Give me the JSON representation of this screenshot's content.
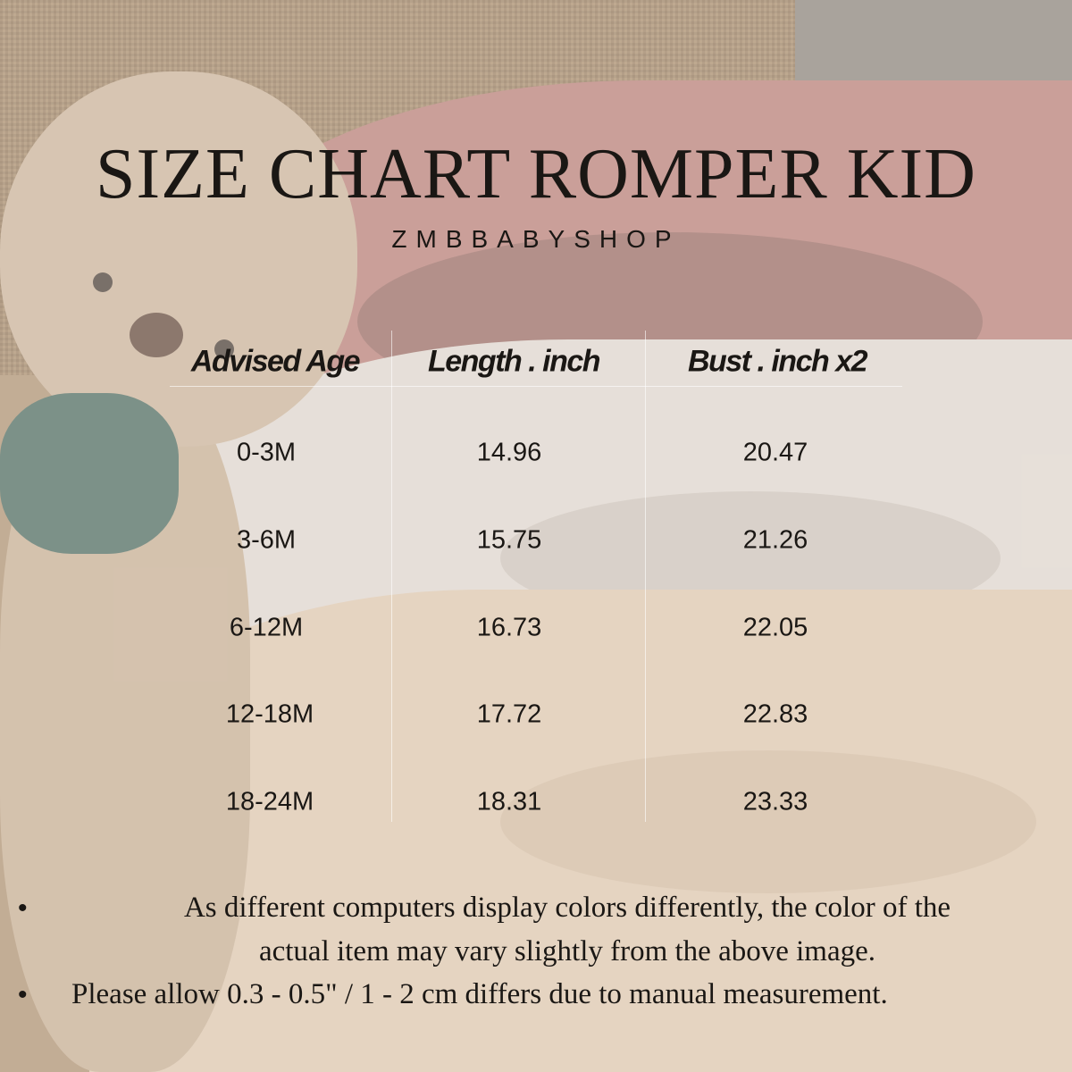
{
  "title": "SIZE CHART ROMPER KID",
  "subtitle": "ZMBBABYSHOP",
  "table": {
    "headers": [
      "Advised Age",
      "Length . inch",
      "Bust . inch x2"
    ],
    "rows": [
      [
        "0-3M",
        "14.96",
        "20.47"
      ],
      [
        "3-6M",
        "15.75",
        "21.26"
      ],
      [
        "6-12M",
        "16.73",
        "22.05"
      ],
      [
        "12-18M",
        "17.72",
        "22.83"
      ],
      [
        "18-24M",
        "18.31",
        "23.33"
      ]
    ]
  },
  "notes": {
    "bullet": "•",
    "line1": "As different computers display colors differently, the color of the",
    "line1b": "actual item may vary slightly from the above image.",
    "line2": "Please allow 0.3 - 0.5\" / 1 - 2 cm differs due to manual measurement."
  },
  "colors": {
    "text": "#1a1714",
    "pink_sweater": "#b5736f",
    "white_sweater": "#e6e1dc",
    "beige_sweater": "#e3cdb4",
    "burlap": "#9b7c58"
  }
}
